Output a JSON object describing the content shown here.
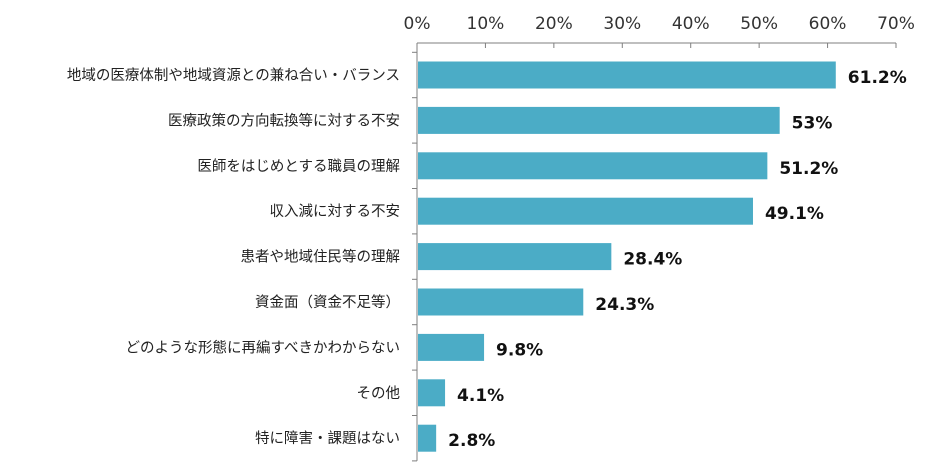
{
  "chart_data": {
    "type": "bar",
    "orientation": "horizontal",
    "title": "",
    "xlabel": "",
    "ylabel": "",
    "categories": [
      "地域の医療体制や地域資源との兼ね合い・バランス",
      "医療政策の方向転換等に対する不安",
      "医師をはじめとする職員の理解",
      "収入減に対する不安",
      "患者や地域住民等の理解",
      "資金面（資金不足等）",
      "どのような形態に再編すべきかわからない",
      "その他",
      "特に障害・課題はない"
    ],
    "values": [
      61.2,
      53,
      51.2,
      49.1,
      28.4,
      24.3,
      9.8,
      4.1,
      2.8
    ],
    "value_labels": [
      "61.2%",
      "53%",
      "51.2%",
      "49.1%",
      "28.4%",
      "24.3%",
      "9.8%",
      "4.1%",
      "2.8%"
    ],
    "xlim": [
      0,
      70
    ],
    "x_ticks": [
      0,
      10,
      20,
      30,
      40,
      50,
      60,
      70
    ],
    "x_tick_labels": [
      "0%",
      "10%",
      "20%",
      "30%",
      "40%",
      "50%",
      "60%",
      "70%"
    ],
    "x_axis_position": "top",
    "grid": false,
    "legend": "none",
    "bar_color": "#4BACC6",
    "axis_color": "#7f7f7f"
  }
}
